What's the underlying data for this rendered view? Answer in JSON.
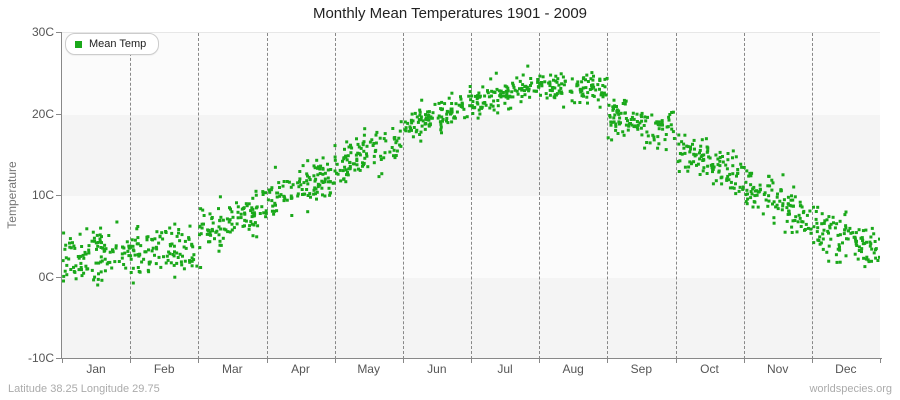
{
  "title": "Monthly Mean Temperatures 1901 - 2009",
  "legend": {
    "label": "Mean Temp"
  },
  "y_axis": {
    "title": "Temperature",
    "tick_labels": [
      "30C",
      "20C",
      "10C",
      "0C",
      "-10C"
    ],
    "tick_values": [
      30,
      20,
      10,
      0,
      -10
    ]
  },
  "x_axis": {
    "months": [
      "Jan",
      "Feb",
      "Mar",
      "Apr",
      "May",
      "Jun",
      "Jul",
      "Aug",
      "Sep",
      "Oct",
      "Nov",
      "Dec"
    ]
  },
  "footer": {
    "left": "Latitude 38.25 Longitude 29.75",
    "right": "worldspecies.org"
  },
  "colors": {
    "point": "#1aa81a",
    "band_light": "#fbfbfb",
    "band_dark": "#f4f4f4",
    "grid": "#888888",
    "axis": "#888888"
  },
  "chart_data": {
    "type": "scatter",
    "title": "Monthly Mean Temperatures 1901 - 2009",
    "xlabel": "",
    "ylabel": "Temperature",
    "ylim": [
      -10,
      30
    ],
    "grid": "vertical-dashed-month-boundaries",
    "background_bands_every_c": 10,
    "legend_position": "top-left",
    "series_name": "Mean Temp",
    "years_span": "1901 - 2009",
    "points_per_month": 109,
    "categories": [
      "Jan",
      "Feb",
      "Mar",
      "Apr",
      "May",
      "Jun",
      "Jul",
      "Aug",
      "Sep",
      "Oct",
      "Nov",
      "Dec"
    ],
    "approx_monthly_mean_c": [
      2.5,
      3.7,
      6.9,
      11.0,
      15.6,
      19.7,
      22.7,
      23.2,
      18.8,
      14.1,
      9.2,
      4.8
    ],
    "approx_monthly_min_c": [
      -2.0,
      -3.0,
      1.0,
      6.5,
      11.5,
      17.0,
      19.5,
      20.5,
      16.0,
      10.0,
      4.5,
      0.0
    ],
    "approx_monthly_max_c": [
      8.0,
      9.0,
      11.0,
      15.0,
      19.5,
      23.5,
      26.0,
      26.3,
      23.0,
      18.0,
      13.0,
      8.5
    ],
    "monthly_trend_start_c": [
      2.3,
      2.9,
      5.1,
      9.3,
      13.6,
      18.0,
      21.5,
      23.2,
      19.6,
      15.9,
      11.0,
      5.9
    ],
    "monthly_trend_end_c": [
      2.7,
      4.4,
      8.6,
      12.7,
      17.5,
      21.4,
      23.8,
      23.2,
      18.0,
      12.3,
      7.3,
      3.6
    ],
    "monthly_sigma_c": [
      1.7,
      1.8,
      1.5,
      1.3,
      1.2,
      1.0,
      1.0,
      1.0,
      1.3,
      1.4,
      1.5,
      1.5
    ]
  }
}
